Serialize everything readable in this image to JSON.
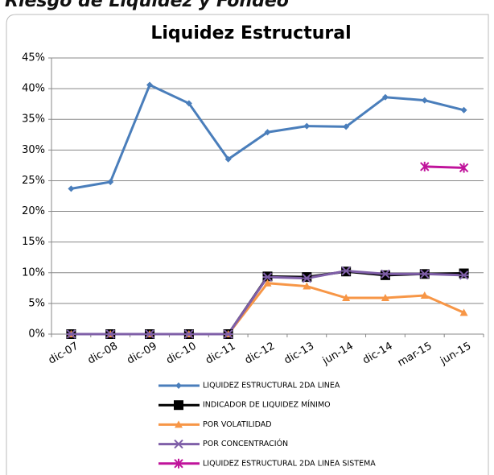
{
  "header": {
    "title": "Riesgo de Liquidez y Fondeo"
  },
  "chart_data": {
    "type": "line",
    "title": "Liquidez Estructural",
    "categories": [
      "dic-07",
      "dic-08",
      "dic-09",
      "dic-10",
      "dic-11",
      "dic-12",
      "dic-13",
      "jun-14",
      "dic-14",
      "mar-15",
      "jun-15"
    ],
    "ylim": [
      0,
      45
    ],
    "yticks": [
      {
        "value": 0,
        "label": "0%"
      },
      {
        "value": 5,
        "label": "5%"
      },
      {
        "value": 10,
        "label": "10%"
      },
      {
        "value": 15,
        "label": "15%"
      },
      {
        "value": 20,
        "label": "20%"
      },
      {
        "value": 25,
        "label": "25%"
      },
      {
        "value": 30,
        "label": "30%"
      },
      {
        "value": 35,
        "label": "35%"
      },
      {
        "value": 40,
        "label": "40%"
      },
      {
        "value": 45,
        "label": "45%"
      }
    ],
    "grid": true,
    "legend": "bottom",
    "series": [
      {
        "name": "LIQUIDEZ ESTRUCTURAL 2DA LINEA",
        "color": "#4a7ebb",
        "marker": "diamond",
        "values": [
          23.7,
          24.8,
          40.6,
          37.6,
          28.5,
          32.9,
          33.9,
          33.8,
          38.6,
          38.1,
          36.5
        ]
      },
      {
        "name": "INDICADOR DE LIQUIDEZ MÍNIMO",
        "color": "#000000",
        "marker": "square",
        "values": [
          0,
          0,
          0,
          0,
          0,
          9.4,
          9.3,
          10.2,
          9.6,
          9.8,
          9.9
        ]
      },
      {
        "name": "POR VOLATILIDAD",
        "color": "#f79646",
        "marker": "triangle",
        "values": [
          0,
          0,
          0,
          0,
          0,
          8.3,
          7.8,
          5.9,
          5.9,
          6.3,
          3.5
        ]
      },
      {
        "name": "POR CONCENTRACIÓN",
        "color": "#7f5fa8",
        "marker": "cross",
        "values": [
          0,
          0,
          0,
          0,
          0,
          9.3,
          9.1,
          10.3,
          9.8,
          9.8,
          9.6
        ]
      },
      {
        "name": "LIQUIDEZ ESTRUCTURAL 2DA LINEA SISTEMA",
        "color": "#c0139b",
        "marker": "star",
        "values": [
          null,
          null,
          null,
          null,
          null,
          null,
          null,
          null,
          null,
          27.3,
          27.1
        ]
      }
    ]
  }
}
